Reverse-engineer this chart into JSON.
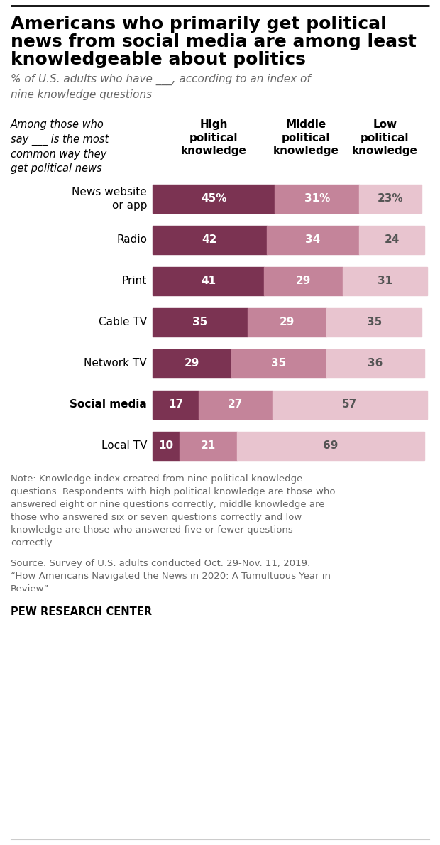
{
  "title_line1": "Americans who primarily get political",
  "title_line2": "news from social media are among least",
  "title_line3": "knowledgeable about politics",
  "subtitle": "% of U.S. adults who have ___, according to an index of\nnine knowledge questions",
  "col_header_note": "Among those who\nsay ___ is the most\ncommon way they\nget political news",
  "col_headers": [
    "High\npolitical\nknowledge",
    "Middle\npolitical\nknowledge",
    "Low\npolitical\nknowledge"
  ],
  "categories": [
    "News website\nor app",
    "Radio",
    "Print",
    "Cable TV",
    "Network TV",
    "Social media",
    "Local TV"
  ],
  "bold_categories": [
    "Social media"
  ],
  "high": [
    45,
    42,
    41,
    35,
    29,
    17,
    10
  ],
  "middle": [
    31,
    34,
    29,
    29,
    35,
    27,
    21
  ],
  "low": [
    23,
    24,
    31,
    35,
    36,
    57,
    69
  ],
  "high_labels": [
    "45%",
    "42",
    "41",
    "35",
    "29",
    "17",
    "10"
  ],
  "middle_labels": [
    "31%",
    "34",
    "29",
    "29",
    "35",
    "27",
    "21"
  ],
  "low_labels": [
    "23%",
    "24",
    "31",
    "35",
    "36",
    "57",
    "69"
  ],
  "color_high": "#7B3352",
  "color_middle": "#C4849A",
  "color_low": "#E8C4CF",
  "note_part1": "Note: Knowledge index created from nine political knowledge\nquestions. Respondents with high political knowledge are those who\nanswered eight or nine questions correctly, middle knowledge are\nthose who answered six or seven questions correctly and low\nknowledge are those who answered five or fewer questions\ncorrectly.",
  "note_part2": "Source: Survey of U.S. adults conducted Oct. 29-Nov. 11, 2019.\n“How Americans Navigated the News in 2020: A Tumultuous Year in\nReview”",
  "source_label": "PEW RESEARCH CENTER",
  "background_color": "#FFFFFF",
  "text_color_dark": "#333333",
  "text_color_gray": "#666666"
}
